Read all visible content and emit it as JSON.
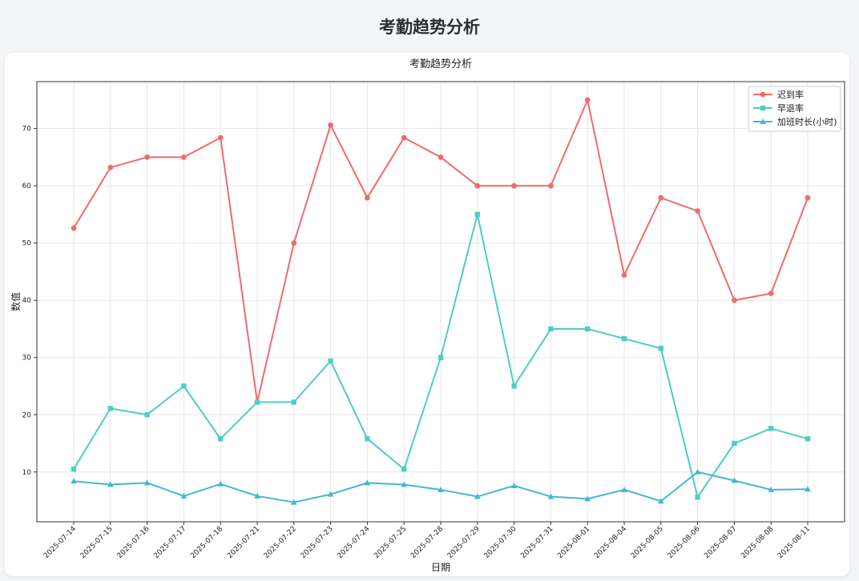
{
  "page": {
    "title": "考勤趋势分析"
  },
  "chart_data": {
    "type": "line",
    "title": "考勤趋势分析",
    "xlabel": "日期",
    "ylabel": "数值",
    "ylim": [
      1.3,
      78.2
    ],
    "yticks": [
      10,
      20,
      30,
      40,
      50,
      60,
      70
    ],
    "grid": true,
    "legend": "top-right",
    "categories": [
      "2025-07-14",
      "2025-07-15",
      "2025-07-16",
      "2025-07-17",
      "2025-07-18",
      "2025-07-21",
      "2025-07-22",
      "2025-07-23",
      "2025-07-24",
      "2025-07-25",
      "2025-07-28",
      "2025-07-29",
      "2025-07-30",
      "2025-07-31",
      "2025-08-01",
      "2025-08-04",
      "2025-08-05",
      "2025-08-06",
      "2025-08-07",
      "2025-08-08",
      "2025-08-11"
    ],
    "series": [
      {
        "name": "迟到率",
        "color": "#f26b6b",
        "marker": "circle",
        "values": [
          52.6,
          63.2,
          65.0,
          65.0,
          68.4,
          22.2,
          50.0,
          70.6,
          57.9,
          68.4,
          65.0,
          60.0,
          60.0,
          60.0,
          75.0,
          44.4,
          57.9,
          55.6,
          40.0,
          41.2,
          57.9
        ]
      },
      {
        "name": "早退率",
        "color": "#4ecdc4",
        "marker": "square",
        "values": [
          10.5,
          21.1,
          20.0,
          25.0,
          15.8,
          22.2,
          22.2,
          29.4,
          15.8,
          10.5,
          30.0,
          55.0,
          25.0,
          35.0,
          35.0,
          33.3,
          31.6,
          5.6,
          15.0,
          17.6,
          15.8
        ]
      },
      {
        "name": "加班时长(小时)",
        "color": "#45b7d1",
        "marker": "triangle",
        "values": [
          8.4,
          7.8,
          8.1,
          5.8,
          7.9,
          5.8,
          4.7,
          6.1,
          8.1,
          7.8,
          6.9,
          5.7,
          7.6,
          5.7,
          5.3,
          6.9,
          4.9,
          10.0,
          8.5,
          6.9,
          7.0
        ]
      }
    ]
  }
}
